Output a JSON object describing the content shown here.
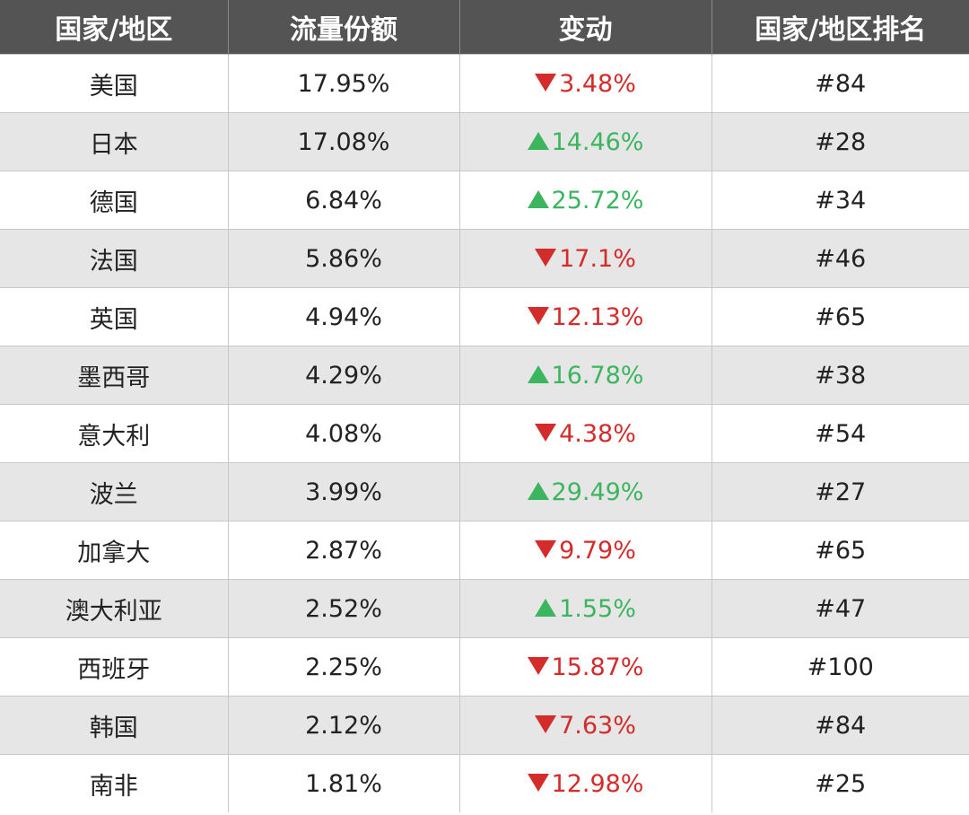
{
  "table": {
    "headers": [
      "国家/地区",
      "流量份额",
      "变动",
      "国家/地区排名"
    ],
    "rows": [
      {
        "country": "美国",
        "share": "17.95%",
        "direction": "down",
        "change": "3.48%",
        "rank": "#84"
      },
      {
        "country": "日本",
        "share": "17.08%",
        "direction": "up",
        "change": "14.46%",
        "rank": "#28"
      },
      {
        "country": "德国",
        "share": "6.84%",
        "direction": "up",
        "change": "25.72%",
        "rank": "#34"
      },
      {
        "country": "法国",
        "share": "5.86%",
        "direction": "down",
        "change": "17.1%",
        "rank": "#46"
      },
      {
        "country": "英国",
        "share": "4.94%",
        "direction": "down",
        "change": "12.13%",
        "rank": "#65"
      },
      {
        "country": "墨西哥",
        "share": "4.29%",
        "direction": "up",
        "change": "16.78%",
        "rank": "#38"
      },
      {
        "country": "意大利",
        "share": "4.08%",
        "direction": "down",
        "change": "4.38%",
        "rank": "#54"
      },
      {
        "country": "波兰",
        "share": "3.99%",
        "direction": "up",
        "change": "29.49%",
        "rank": "#27"
      },
      {
        "country": "加拿大",
        "share": "2.87%",
        "direction": "down",
        "change": "9.79%",
        "rank": "#65"
      },
      {
        "country": "澳大利亚",
        "share": "2.52%",
        "direction": "up",
        "change": "1.55%",
        "rank": "#47"
      },
      {
        "country": "西班牙",
        "share": "2.25%",
        "direction": "down",
        "change": "15.87%",
        "rank": "#100"
      },
      {
        "country": "韩国",
        "share": "2.12%",
        "direction": "down",
        "change": "7.63%",
        "rank": "#84"
      },
      {
        "country": "南非",
        "share": "1.81%",
        "direction": "down",
        "change": "12.98%",
        "rank": "#25"
      }
    ]
  },
  "colors": {
    "header_bg": "#545454",
    "up": "#3cb55f",
    "down": "#d42b2b",
    "stripe": "#e6e6e6"
  },
  "icons": {
    "up": "triangle-up-icon",
    "down": "triangle-down-icon"
  }
}
